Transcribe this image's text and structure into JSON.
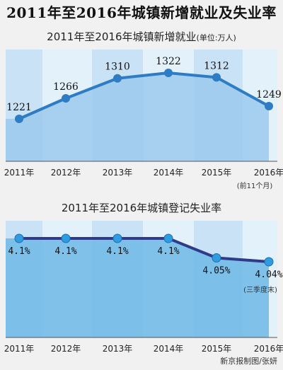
{
  "main_title": "2011年至2016年城镇新增就业及失业率",
  "credit": "新京报制图/张妍",
  "chart_data": [
    {
      "type": "area",
      "title": "2011年至2016年城镇新增就业",
      "unit": "(单位:万人)",
      "categories": [
        "2011年",
        "2012年",
        "2013年",
        "2014年",
        "2015年",
        "2016年"
      ],
      "values": [
        1221,
        1266,
        1310,
        1322,
        1312,
        1249
      ],
      "value_labels": [
        "1221",
        "1266",
        "1310",
        "1322",
        "1312",
        "1249"
      ],
      "notes": {
        "2016年": "(前11个月)"
      },
      "color": "#2e7cc4"
    },
    {
      "type": "area",
      "title": "2011年至2016年城镇登记失业率",
      "categories": [
        "2011年",
        "2012年",
        "2013年",
        "2014年",
        "2015年",
        "2016年"
      ],
      "values": [
        4.1,
        4.1,
        4.1,
        4.1,
        4.05,
        4.04
      ],
      "value_labels": [
        "4.1%",
        "4.1%",
        "4.1%",
        "4.1%",
        "4.05%",
        "4.04%"
      ],
      "notes": {
        "2016年": "(三季度末)"
      },
      "color": "#2e3a8a"
    }
  ]
}
